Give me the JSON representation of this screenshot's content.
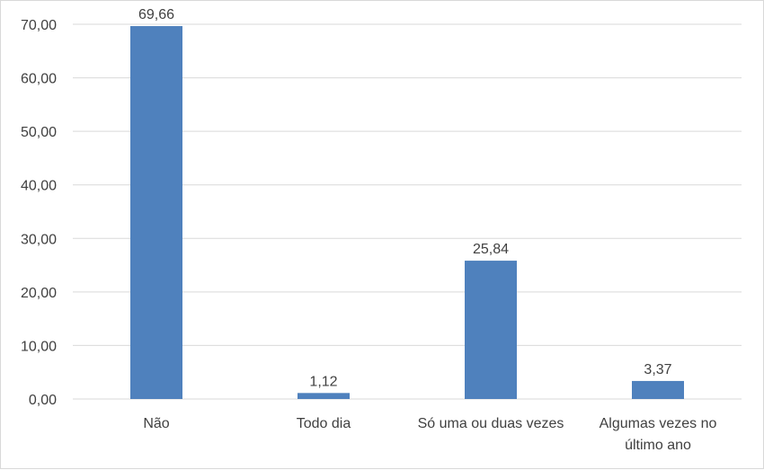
{
  "chart_data": {
    "type": "bar",
    "title": "",
    "xlabel": "",
    "ylabel": "",
    "categories": [
      [
        "Não"
      ],
      [
        "Todo dia"
      ],
      [
        "Só uma ou duas vezes"
      ],
      [
        "Algumas vezes no",
        "último ano"
      ]
    ],
    "values": [
      69.66,
      1.12,
      25.84,
      3.37
    ],
    "data_labels": [
      "69,66",
      "1,12",
      "25,84",
      "3,37"
    ],
    "ylim": [
      0,
      70
    ],
    "yticks": [
      "0,00",
      "10,00",
      "20,00",
      "30,00",
      "40,00",
      "50,00",
      "60,00",
      "70,00"
    ],
    "grid": true,
    "legend": "none",
    "colors": {
      "bar": "#4f81bd",
      "grid": "#d9d9d9",
      "text": "#404040"
    }
  }
}
